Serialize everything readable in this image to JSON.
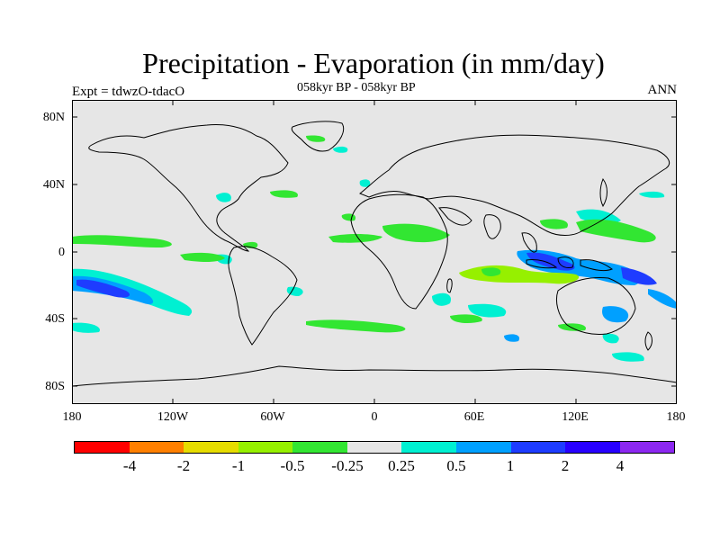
{
  "header": {
    "title": "Precipitation - Evaporation (in mm/day)",
    "subtitle": "058kyr BP - 058kyr BP",
    "experiment": "Expt = tdwzO-tdacO",
    "season": "ANN"
  },
  "map": {
    "lat_labels": [
      "80N",
      "40N",
      "0",
      "40S",
      "80S"
    ],
    "lon_labels": [
      "180",
      "120W",
      "60W",
      "0",
      "60E",
      "120E",
      "180"
    ],
    "ocean_color": "#e6e6e6",
    "coast_color": "#000000"
  },
  "colorbar": {
    "colors": [
      "#ff0000",
      "#ff8000",
      "#e6dc00",
      "#96f000",
      "#32e632",
      "#e6e6e6",
      "#00f0d2",
      "#00a0ff",
      "#1e3cff",
      "#2800ff",
      "#8c28f0"
    ],
    "labels": [
      "-4",
      "-2",
      "-1",
      "-0.5",
      "-0.25",
      "0.25",
      "0.5",
      "1",
      "2",
      "4"
    ]
  }
}
